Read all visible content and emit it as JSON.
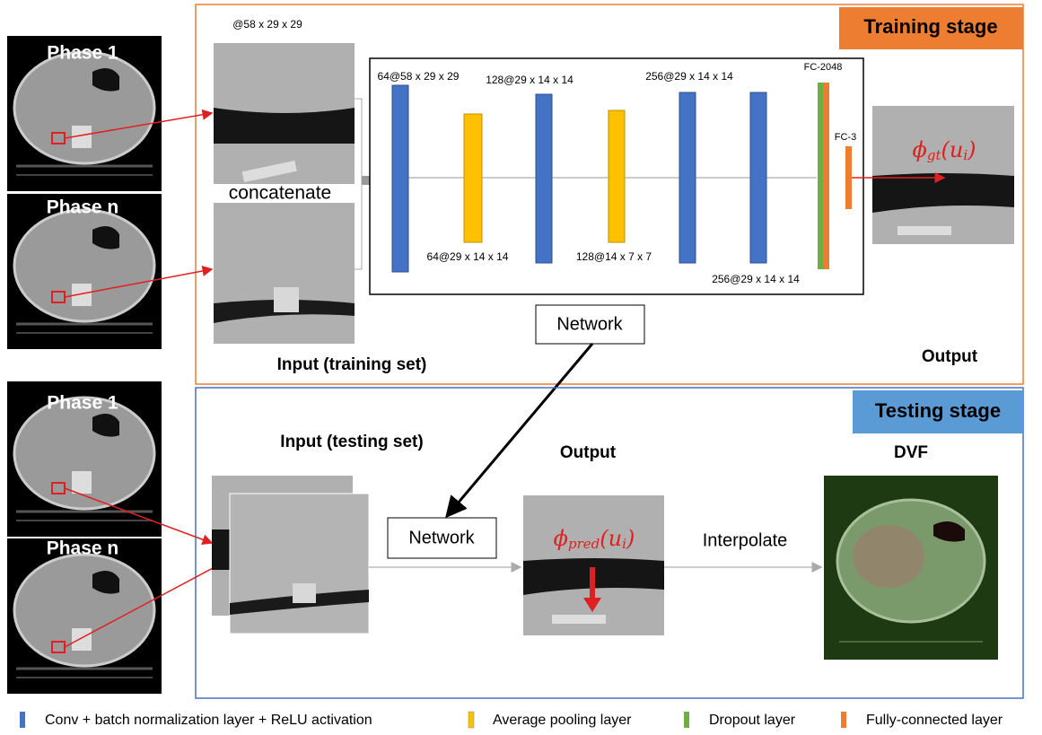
{
  "training": {
    "stage_label": "Training stage",
    "input": {
      "phase_top": "Phase 1",
      "phase_bottom": "Phase n",
      "patch_size": "@58 x 29 x 29",
      "concatenate": "concatenate",
      "caption": "Input (training set)"
    },
    "network": {
      "layers_top": [
        "64@58 x 29 x 29",
        "128@29 x 14 x 14",
        "256@29 x 14 x 14",
        "FC-2048"
      ],
      "layers_bottom": [
        "64@29 x 14 x 14",
        "128@14 x 7 x 7",
        "256@29 x 14 x 14"
      ],
      "fc3": "FC-3",
      "label": "Network"
    },
    "output": {
      "formula": {
        "base": "ϕ",
        "sub": "gt",
        "arg": "(u",
        "arg_sub": "i",
        "close": ")"
      },
      "caption": "Output"
    }
  },
  "testing": {
    "stage_label": "Testing stage",
    "input": {
      "phase_top": "Phase 1",
      "phase_bottom": "Phase n",
      "caption": "Input (testing set)"
    },
    "network_label": "Network",
    "output": {
      "caption": "Output",
      "formula": {
        "base": "ϕ",
        "sub": "pred",
        "arg": "(u",
        "arg_sub": "i",
        "close": ")"
      }
    },
    "interpolate": "Interpolate",
    "dvf": "DVF"
  },
  "legend": [
    "Conv + batch normalization layer + ReLU activation",
    "Average pooling layer",
    "Dropout layer",
    "Fully-connected layer"
  ]
}
